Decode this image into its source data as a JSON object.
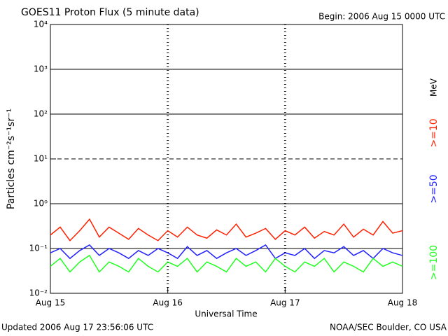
{
  "chart_data": {
    "type": "line",
    "title": "GOES11 Proton Flux (5 minute data)",
    "subtitle": "Begin: 2006 Aug 15 0000 UTC",
    "x_label": "Universal Time",
    "y_label": "Particles cm⁻²s⁻¹sr⁻¹",
    "legend_unit": "MeV",
    "footer_left": "Updated 2006 Aug 17 23:56:06 UTC",
    "footer_right": "NOAA/SEC Boulder, CO USA",
    "log_y": true,
    "grid": true,
    "threshold_line": 10,
    "xlim": [
      0,
      72
    ],
    "xticks": [
      {
        "value": 0,
        "label": "Aug 15"
      },
      {
        "value": 24,
        "label": "Aug 16"
      },
      {
        "value": 48,
        "label": "Aug 17"
      },
      {
        "value": 72,
        "label": "Aug 18"
      }
    ],
    "ylim": [
      0.01,
      10000
    ],
    "yticks": [
      {
        "value": 0.01,
        "label": "10⁻²"
      },
      {
        "value": 0.1,
        "label": "10⁻¹"
      },
      {
        "value": 1,
        "label": "10⁰"
      },
      {
        "value": 10,
        "label": "10¹"
      },
      {
        "value": 100,
        "label": "10²"
      },
      {
        "value": 1000,
        "label": "10³"
      },
      {
        "value": 10000,
        "label": "10⁴"
      }
    ],
    "x": [
      0,
      2,
      4,
      6,
      8,
      10,
      12,
      14,
      16,
      18,
      20,
      22,
      24,
      26,
      28,
      30,
      32,
      34,
      36,
      38,
      40,
      42,
      44,
      46,
      48,
      50,
      52,
      54,
      56,
      58,
      60,
      62,
      64,
      66,
      68,
      70,
      72
    ],
    "series": [
      {
        "name": ">=10",
        "color": "#ff2000",
        "values": [
          0.2,
          0.3,
          0.15,
          0.25,
          0.45,
          0.18,
          0.3,
          0.22,
          0.16,
          0.28,
          0.2,
          0.15,
          0.25,
          0.18,
          0.3,
          0.2,
          0.17,
          0.26,
          0.2,
          0.35,
          0.18,
          0.22,
          0.28,
          0.16,
          0.25,
          0.2,
          0.3,
          0.17,
          0.24,
          0.2,
          0.35,
          0.18,
          0.27,
          0.2,
          0.4,
          0.22,
          0.25
        ]
      },
      {
        "name": ">=50",
        "color": "#2020ff",
        "values": [
          0.08,
          0.1,
          0.06,
          0.09,
          0.12,
          0.07,
          0.1,
          0.08,
          0.06,
          0.09,
          0.07,
          0.1,
          0.08,
          0.06,
          0.11,
          0.07,
          0.09,
          0.06,
          0.08,
          0.1,
          0.07,
          0.09,
          0.12,
          0.06,
          0.08,
          0.07,
          0.1,
          0.06,
          0.09,
          0.08,
          0.11,
          0.07,
          0.09,
          0.06,
          0.1,
          0.08,
          0.07
        ]
      },
      {
        "name": ">=100",
        "color": "#20ff20",
        "values": [
          0.04,
          0.06,
          0.03,
          0.05,
          0.07,
          0.03,
          0.05,
          0.04,
          0.03,
          0.06,
          0.04,
          0.03,
          0.05,
          0.04,
          0.06,
          0.03,
          0.05,
          0.04,
          0.03,
          0.06,
          0.04,
          0.05,
          0.03,
          0.06,
          0.04,
          0.03,
          0.05,
          0.04,
          0.06,
          0.03,
          0.05,
          0.04,
          0.03,
          0.06,
          0.04,
          0.05,
          0.04
        ]
      }
    ]
  }
}
